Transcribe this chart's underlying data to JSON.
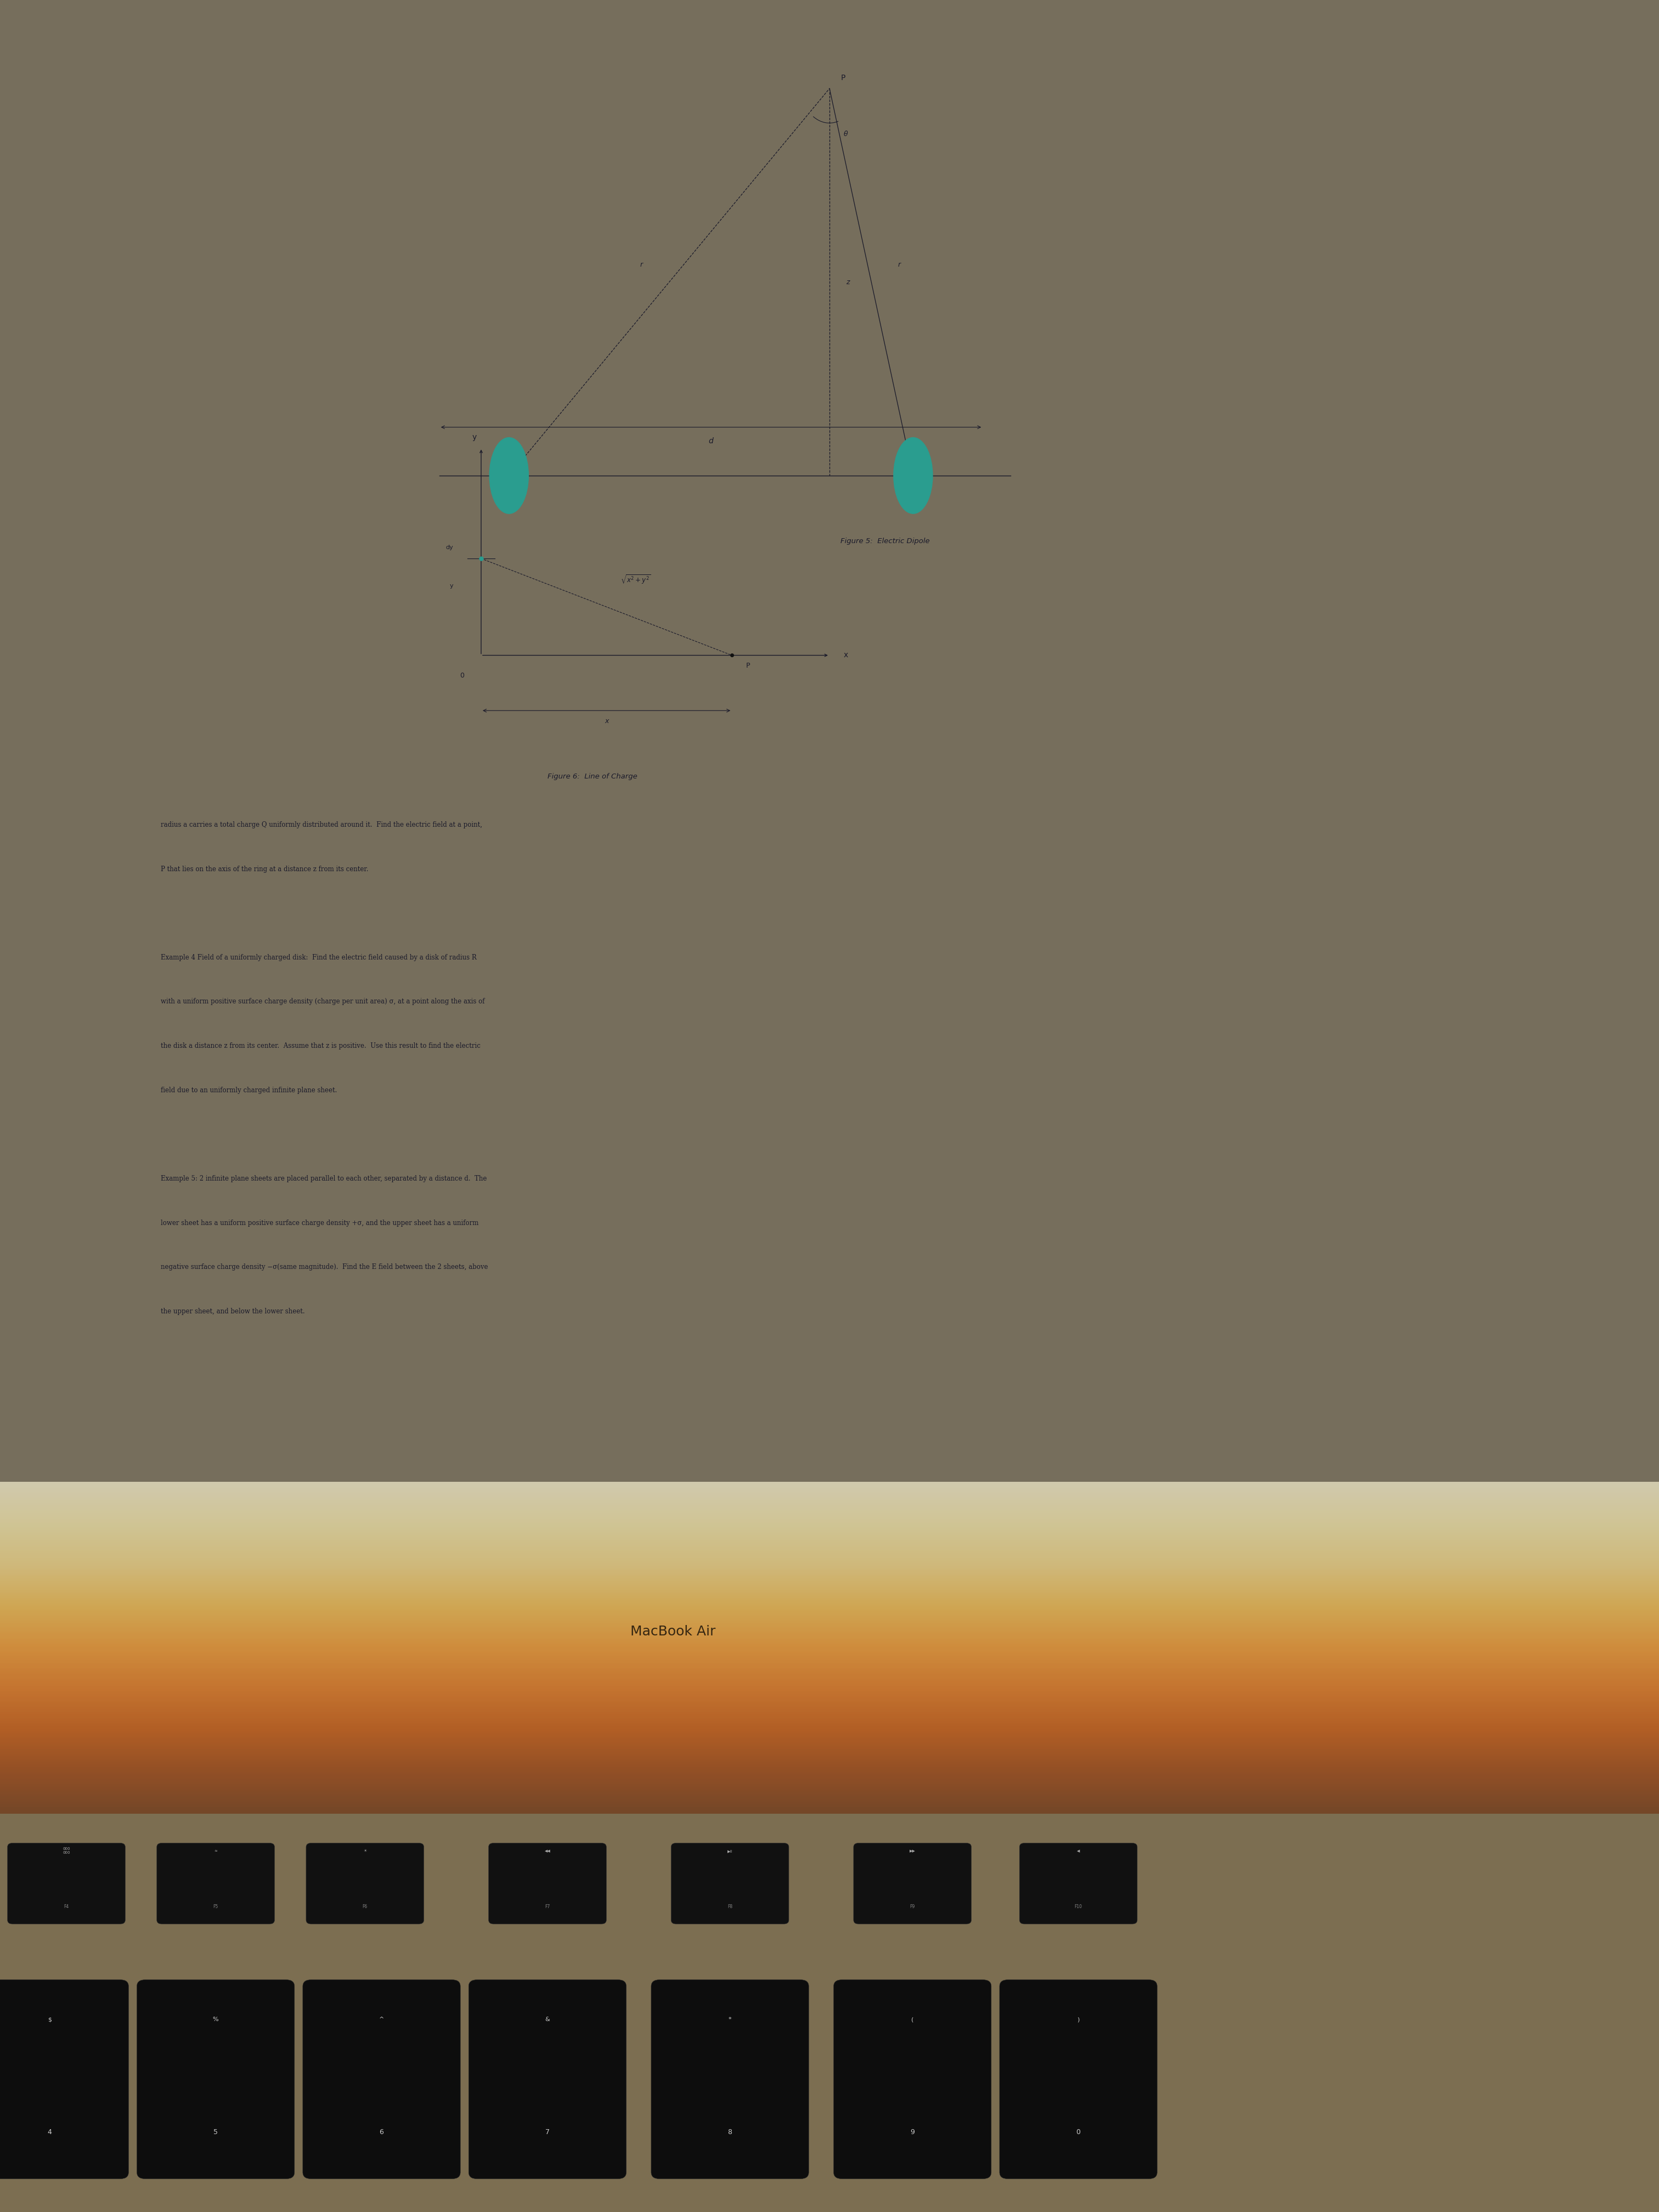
{
  "screen_bg": "#c8d4dc",
  "page_bg": "#dde4e8",
  "body_color_top": "#6b6040",
  "body_color_bottom": "#3a3020",
  "keyboard_bg": "#1a1510",
  "key_color": "#1a1510",
  "key_edge": "#2a2520",
  "key_text": "#cccccc",
  "teal_color": "#2a9d8f",
  "line_color": "#1a1a2a",
  "text_color": "#1a1a2a",
  "caption_color": "#1a1a2a",
  "fig5_caption": "Figure 5:  Electric Dipole",
  "fig6_caption": "Figure 6:  Line of Charge",
  "text_lines": [
    "radius a carries a total charge Q uniformly distributed around it.  Find the electric field at a point,",
    "P that lies on the axis of the ring at a distance z from its center.",
    "",
    "Example 4 Field of a uniformly charged disk:  Find the electric field caused by a disk of radius R",
    "with a uniform positive surface charge density (charge per unit area) σ, at a point along the axis of",
    "the disk a distance z from its center.  Assume that z is positive.  Use this result to find the electric",
    "field due to an uniformly charged infinite plane sheet.",
    "",
    "Example 5: 2 infinite plane sheets are placed parallel to each other, separated by a distance d.  The",
    "lower sheet has a uniform positive surface charge density +σ, and the upper sheet has a uniform",
    "negative surface charge density −σ(same magnitude).  Find the E field between the 2 sheets, above",
    "the upper sheet, and below the lower sheet."
  ],
  "fkeys": [
    "F4",
    "F5",
    "F6",
    "F7",
    "F8",
    "F9",
    "F10"
  ],
  "numkeys_top": [
    "$",
    "%",
    "^",
    "&",
    "*",
    "(",
    ")"
  ],
  "numkeys_bot": [
    "4",
    "5",
    "6",
    "7",
    "8",
    "9",
    "0"
  ]
}
